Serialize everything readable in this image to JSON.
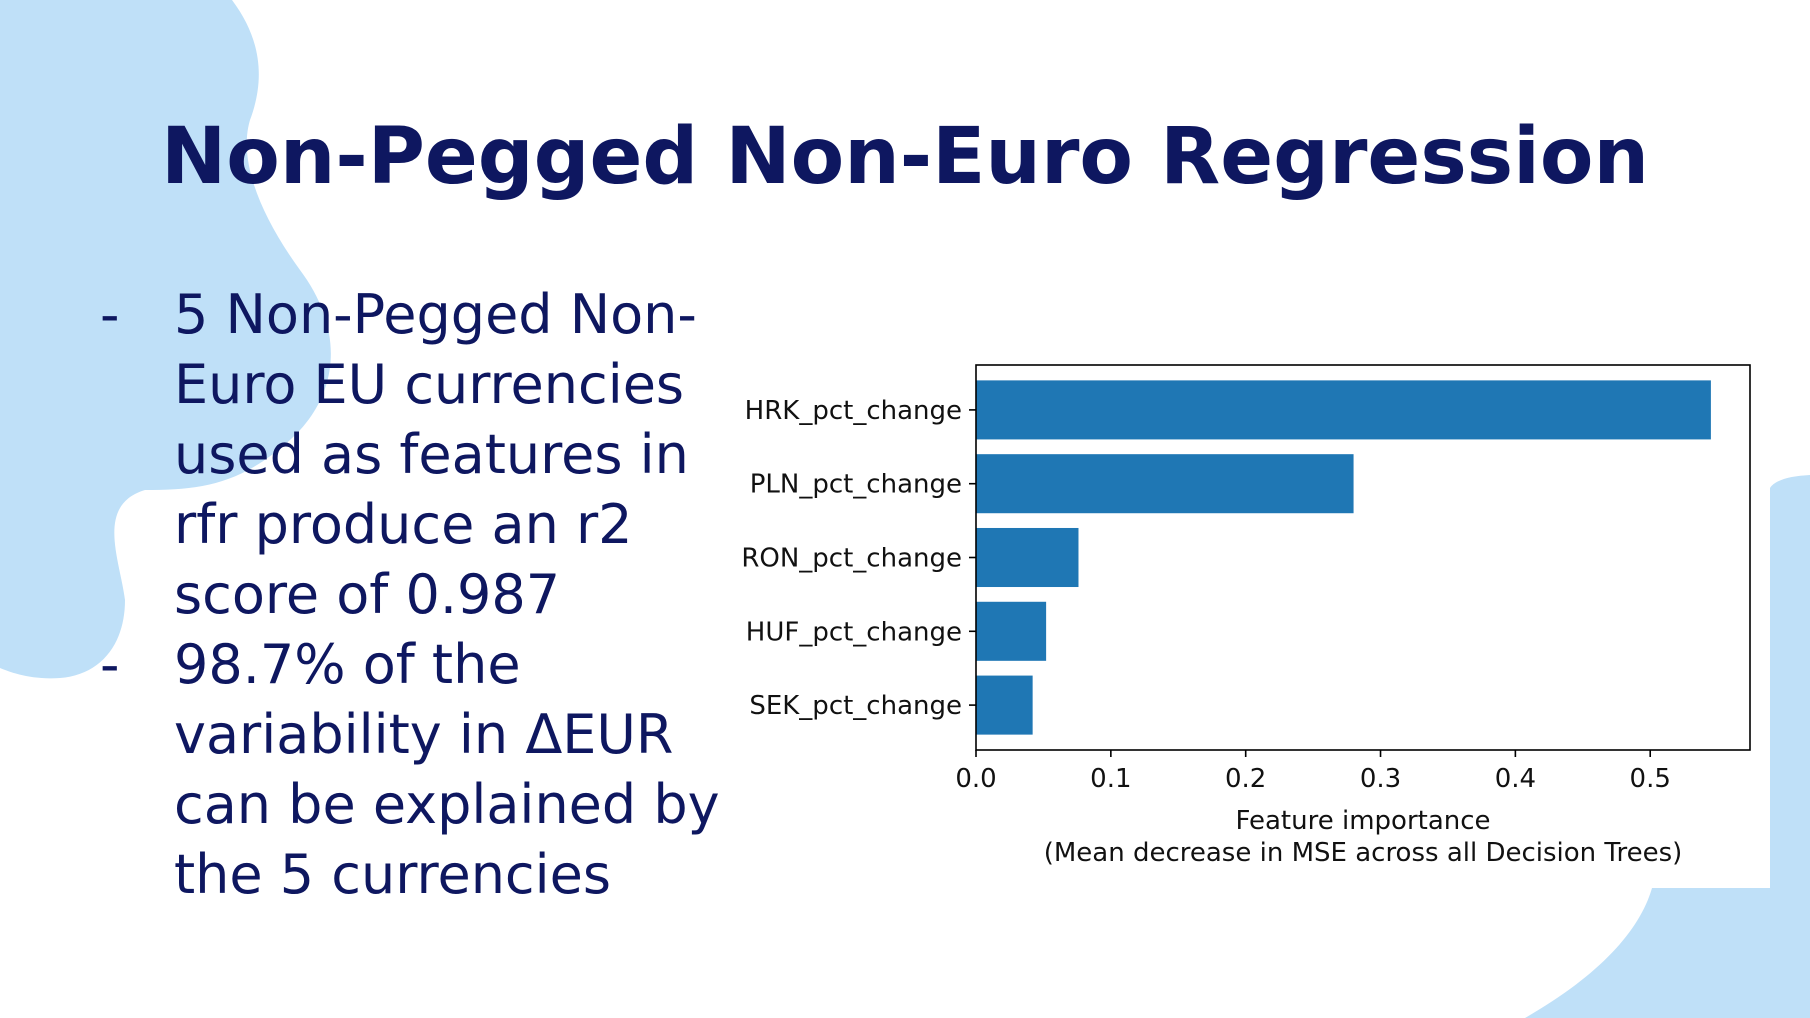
{
  "slide": {
    "title": "Non-Pegged Non-Euro Regression",
    "bullets": [
      {
        "marker": "-",
        "text": "5 Non-Pegged Non-Euro EU currencies used as features in rfr produce an r2 score of 0.987"
      },
      {
        "marker": "-",
        "text": "98.7% of the variability in ΔEUR can be explained by the 5 currencies"
      }
    ]
  },
  "colors": {
    "title": "#0e1760",
    "blob": "#bfe0f8",
    "bar": "#1f77b4"
  },
  "chart_data": {
    "type": "bar",
    "orientation": "horizontal",
    "categories": [
      "HRK_pct_change",
      "PLN_pct_change",
      "RON_pct_change",
      "HUF_pct_change",
      "SEK_pct_change"
    ],
    "values": [
      0.545,
      0.28,
      0.076,
      0.052,
      0.042
    ],
    "xlabel": "Feature importance",
    "xlabel_line2": "(Mean decrease in MSE across all Decision Trees)",
    "xlim": [
      0,
      0.574
    ],
    "xticks": [
      0.0,
      0.1,
      0.2,
      0.3,
      0.4,
      0.5
    ],
    "xtick_labels": [
      "0.0",
      "0.1",
      "0.2",
      "0.3",
      "0.4",
      "0.5"
    ],
    "grid": false,
    "legend": "none"
  }
}
